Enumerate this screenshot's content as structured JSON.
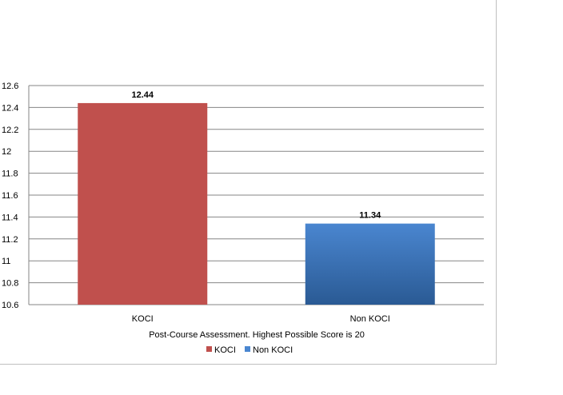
{
  "chart_data": {
    "type": "bar",
    "title": "",
    "xlabel": "Post-Course Assessment. Highest Possible Score is 20",
    "ylabel": "",
    "categories": [
      "KOCI",
      "Non KOCI"
    ],
    "values": [
      12.44,
      11.34
    ],
    "data_labels": [
      "12.44",
      "11.34"
    ],
    "ylim": [
      10.6,
      12.6
    ],
    "y_ticks": [
      "10.6",
      "10.8",
      "11",
      "11.2",
      "11.4",
      "11.6",
      "11.8",
      "12",
      "12.2",
      "12.4",
      "12.6"
    ],
    "grid": true,
    "legend_position": "bottom",
    "legend": [
      {
        "name": "KOCI",
        "color": "#c0504d"
      },
      {
        "name": "Non KOCI",
        "color": "#4a86d0"
      }
    ],
    "colors": {
      "koci_bar": "#c0504d",
      "non_koci_top": "#4a86d0",
      "non_koci_bottom": "#2a5a94",
      "grid": "#868686"
    }
  }
}
